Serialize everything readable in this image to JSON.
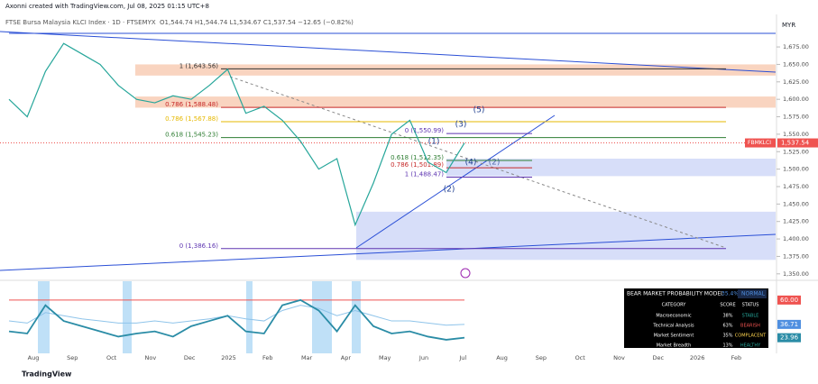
{
  "header": {
    "credit": "Axonni created with TradingView.com, Jul 08, 2025 01:15 UTC+8",
    "symbol": "FTSE Bursa Malaysia KLCI Index · 1D · FTSEMYX",
    "ohlc": "O1,544.74 H1,544.74 L1,534.67 C1,537.54 −12.65 (−0.82%)",
    "currency": "MYR",
    "brand": "TradingView"
  },
  "chart_data": {
    "type": "line",
    "time_labels": [
      "Aug",
      "Sep",
      "Oct",
      "Nov",
      "Dec",
      "2025",
      "Feb",
      "Mar",
      "Apr",
      "May",
      "Jun",
      "Jul",
      "Aug",
      "Sep",
      "Oct",
      "Nov",
      "Dec",
      "2026",
      "Feb"
    ],
    "series": [
      {
        "name": "FBMKLCI",
        "color": "#26a69a",
        "values": [
          1600,
          1575,
          1640,
          1680,
          1665,
          1650,
          1620,
          1600,
          1595,
          1605,
          1600,
          1620,
          1643,
          1580,
          1590,
          1570,
          1540,
          1500,
          1515,
          1420,
          1480,
          1550,
          1570,
          1510,
          1495,
          1537.54
        ]
      }
    ],
    "last_price": {
      "value": 1537.54,
      "label": "1,537.54"
    },
    "ylim": [
      1342,
      1719
    ],
    "yticks": [
      {
        "value": 1675,
        "label": "1,675.00"
      },
      {
        "value": 1650,
        "label": "1,650.00"
      },
      {
        "value": 1625,
        "label": "1,625.00"
      },
      {
        "value": 1600,
        "label": "1,600.00"
      },
      {
        "value": 1575,
        "label": "1,575.00"
      },
      {
        "value": 1550,
        "label": "1,550.00"
      },
      {
        "value": 1525,
        "label": "1,525.00"
      },
      {
        "value": 1500,
        "label": "1,500.00"
      },
      {
        "value": 1475,
        "label": "1,475.00"
      },
      {
        "value": 1450,
        "label": "1,450.00"
      },
      {
        "value": 1425,
        "label": "1,425.00"
      },
      {
        "value": 1400,
        "label": "1,400.00"
      },
      {
        "value": 1375,
        "label": "1,375.00"
      },
      {
        "value": 1350,
        "label": "1,350.00"
      }
    ],
    "fib_levels": [
      {
        "price": 1643.56,
        "label": "1 (1,643.56)",
        "color": "#333333"
      },
      {
        "price": 1588.48,
        "label": "0.786 (1,588.48)",
        "color": "#c62828"
      },
      {
        "price": 1567.88,
        "label": "0.786 (1,567.88)",
        "color": "#e6b800"
      },
      {
        "price": 1545.23,
        "label": "0.618 (1,545.23)",
        "color": "#2e7d32"
      },
      {
        "price": 1550.99,
        "label": "0 (1,550.99)",
        "color": "#5e35b1"
      },
      {
        "price": 1512.35,
        "label": "0.618 (1,512.35)",
        "color": "#2e7d32"
      },
      {
        "price": 1501.89,
        "label": "0.786 (1,501.89)",
        "color": "#c62828"
      },
      {
        "price": 1488.47,
        "label": "1 (1,488.47)",
        "color": "#5e35b1"
      },
      {
        "price": 1386.16,
        "label": "0 (1,386.16)",
        "color": "#5e35b1"
      }
    ],
    "zones": [
      {
        "low": 1634,
        "high": 1650,
        "color": "#f8c9b0"
      },
      {
        "low": 1588,
        "high": 1604,
        "color": "#f8c9b0"
      },
      {
        "low": 1490,
        "high": 1515,
        "color": "#cdd6f7"
      },
      {
        "low": 1370,
        "high": 1439,
        "color": "#cdd6f7"
      }
    ],
    "waves": [
      "(1)",
      "(2)",
      "(3)",
      "(4)",
      "(5)",
      "(2)"
    ],
    "indicator": {
      "ylim": [
        9,
        78
      ],
      "ticks": [
        {
          "value": 60,
          "label": "60.00",
          "color": "#ef5350"
        },
        {
          "value": 36.71,
          "label": "36.71",
          "color": "#4f8fe0"
        },
        {
          "value": 23.96,
          "label": "23.96",
          "color": "#2a8ca6"
        }
      ],
      "series": [
        {
          "color": "#8fc4ea",
          "values": [
            40,
            38,
            48,
            45,
            42,
            40,
            38,
            38,
            40,
            38,
            40,
            42,
            45,
            42,
            40,
            50,
            55,
            52,
            45,
            50,
            45,
            40,
            40,
            38,
            36,
            36.71
          ]
        },
        {
          "color": "#2a8ca6",
          "values": [
            30,
            28,
            55,
            40,
            35,
            30,
            25,
            28,
            30,
            25,
            35,
            40,
            45,
            30,
            28,
            55,
            60,
            50,
            30,
            55,
            35,
            28,
            30,
            25,
            22,
            23.96
          ]
        }
      ]
    }
  },
  "table": {
    "title": "BEAR MARKET PROBABILITY MODEL",
    "score": "35.4%",
    "status": "NORMAL",
    "columns": [
      "CATEGORY",
      "SCORE",
      "STATUS"
    ],
    "rows": [
      [
        "Macroeconomic",
        "38%",
        "STABLE"
      ],
      [
        "Technical Analysis",
        "63%",
        "BEARISH"
      ],
      [
        "Market Sentiment",
        "35%",
        "COMPLACENT"
      ],
      [
        "Market Breadth",
        "13%",
        "HEALTHY"
      ]
    ]
  }
}
